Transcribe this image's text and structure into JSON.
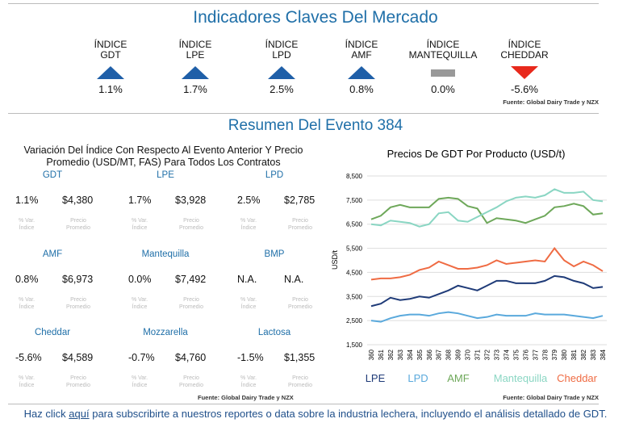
{
  "header": {
    "title": "Indicadores Claves Del Mercado"
  },
  "indicators": [
    {
      "top": "ÍNDICE",
      "name": "GDT",
      "value": "1.1%",
      "direction": "up"
    },
    {
      "top": "ÍNDICE",
      "name": "LPE",
      "value": "1.7%",
      "direction": "up"
    },
    {
      "top": "ÍNDICE",
      "name": "LPD",
      "value": "2.5%",
      "direction": "up"
    },
    {
      "top": "ÍNDICE",
      "name": "AMF",
      "value": "0.8%",
      "direction": "up"
    },
    {
      "top": "ÍNDICE",
      "name": "MANTEQUILLA",
      "value": "0.0%",
      "direction": "flat"
    },
    {
      "top": "ÍNDICE",
      "name": "CHEDDAR",
      "value": "-5.6%",
      "direction": "down"
    }
  ],
  "indicators_source": "Fuente: Global Dairy Trade y NZX",
  "summary": {
    "title": "Resumen Del Evento 384",
    "subtitle": "Variación Del Índice Con Respecto Al Evento Anterior Y Precio Promedio (USD/MT, FAS) Para Todos Los Contratos",
    "pct_caption": [
      "% Var.",
      "Índice"
    ],
    "price_caption": [
      "Precio",
      "Promedio"
    ],
    "items": [
      {
        "name": "GDT",
        "pct": "1.1%",
        "price": "$4,380"
      },
      {
        "name": "LPE",
        "pct": "1.7%",
        "price": "$3,928"
      },
      {
        "name": "LPD",
        "pct": "2.5%",
        "price": "$2,785"
      },
      {
        "name": "AMF",
        "pct": "0.8%",
        "price": "$6,973"
      },
      {
        "name": "Mantequilla",
        "pct": "0.0%",
        "price": "$7,492"
      },
      {
        "name": "BMP",
        "pct": "N.A.",
        "price": "N.A."
      },
      {
        "name": "Cheddar",
        "pct": "-5.6%",
        "price": "$4,589"
      },
      {
        "name": "Mozzarella",
        "pct": "-0.7%",
        "price": "$4,760"
      },
      {
        "name": "Lactosa",
        "pct": "-1.5%",
        "price": "$1,355"
      }
    ],
    "source": "Fuente: Global Dairy Trade y NZX"
  },
  "chart_data": {
    "type": "line",
    "title": "Precios De GDT Por Producto (USD/t)",
    "y_label": "USD/t",
    "categories": [
      "360",
      "361",
      "362",
      "363",
      "364",
      "365",
      "366",
      "367",
      "368",
      "369",
      "370",
      "371",
      "372",
      "373",
      "374",
      "375",
      "376",
      "377",
      "378",
      "379",
      "380",
      "381",
      "382",
      "383",
      "384"
    ],
    "series": [
      {
        "name": "LPE",
        "color": "#1f3b78",
        "values": [
          3100,
          3200,
          3450,
          3350,
          3400,
          3500,
          3450,
          3600,
          3750,
          3950,
          3850,
          3750,
          3950,
          4150,
          4150,
          4050,
          4050,
          4050,
          4150,
          4350,
          4300,
          4150,
          4050,
          3850,
          3900
        ]
      },
      {
        "name": "LPD",
        "color": "#5aa9dc",
        "values": [
          2500,
          2450,
          2600,
          2700,
          2750,
          2750,
          2700,
          2800,
          2850,
          2800,
          2700,
          2600,
          2650,
          2750,
          2700,
          2700,
          2700,
          2800,
          2750,
          2750,
          2750,
          2700,
          2650,
          2600,
          2700
        ]
      },
      {
        "name": "AMF",
        "color": "#6ea85a",
        "values": [
          6700,
          6850,
          7200,
          7300,
          7200,
          7200,
          7200,
          7550,
          7600,
          7550,
          7250,
          7150,
          6550,
          6750,
          6700,
          6650,
          6550,
          6700,
          6850,
          7200,
          7250,
          7350,
          7250,
          6900,
          6950
        ]
      },
      {
        "name": "Mantequilla",
        "color": "#8ad6c3",
        "values": [
          6500,
          6450,
          6650,
          6600,
          6550,
          6400,
          6500,
          6950,
          7000,
          6650,
          6600,
          6800,
          7000,
          7200,
          7450,
          7600,
          7650,
          7600,
          7700,
          7950,
          7800,
          7800,
          7850,
          7500,
          7450
        ]
      },
      {
        "name": "Cheddar",
        "color": "#ef6b43",
        "values": [
          4200,
          4250,
          4250,
          4300,
          4400,
          4600,
          4700,
          4950,
          4800,
          4650,
          4650,
          4700,
          4800,
          5000,
          4850,
          4900,
          4950,
          5000,
          4950,
          5500,
          5000,
          4750,
          4950,
          4800,
          4550
        ]
      }
    ],
    "ylim": [
      1500,
      8500
    ],
    "yticks": [
      {
        "value": 1500,
        "label": "1,500"
      },
      {
        "value": 2500,
        "label": "2,500"
      },
      {
        "value": 3500,
        "label": "3,500"
      },
      {
        "value": 4500,
        "label": "4,500"
      },
      {
        "value": 5500,
        "label": "5,500"
      },
      {
        "value": 6500,
        "label": "6,500"
      },
      {
        "value": 7500,
        "label": "7,500"
      },
      {
        "value": 8500,
        "label": "8,500"
      }
    ],
    "grid": true,
    "source": "Fuente: Global Dairy Trade y NZX"
  },
  "footer": {
    "before": "Haz click ",
    "link": "aquí",
    "after": " para subscribirte a nuestros reportes o data sobre la industria lechera, incluyendo el análisis detallado de GDT."
  }
}
